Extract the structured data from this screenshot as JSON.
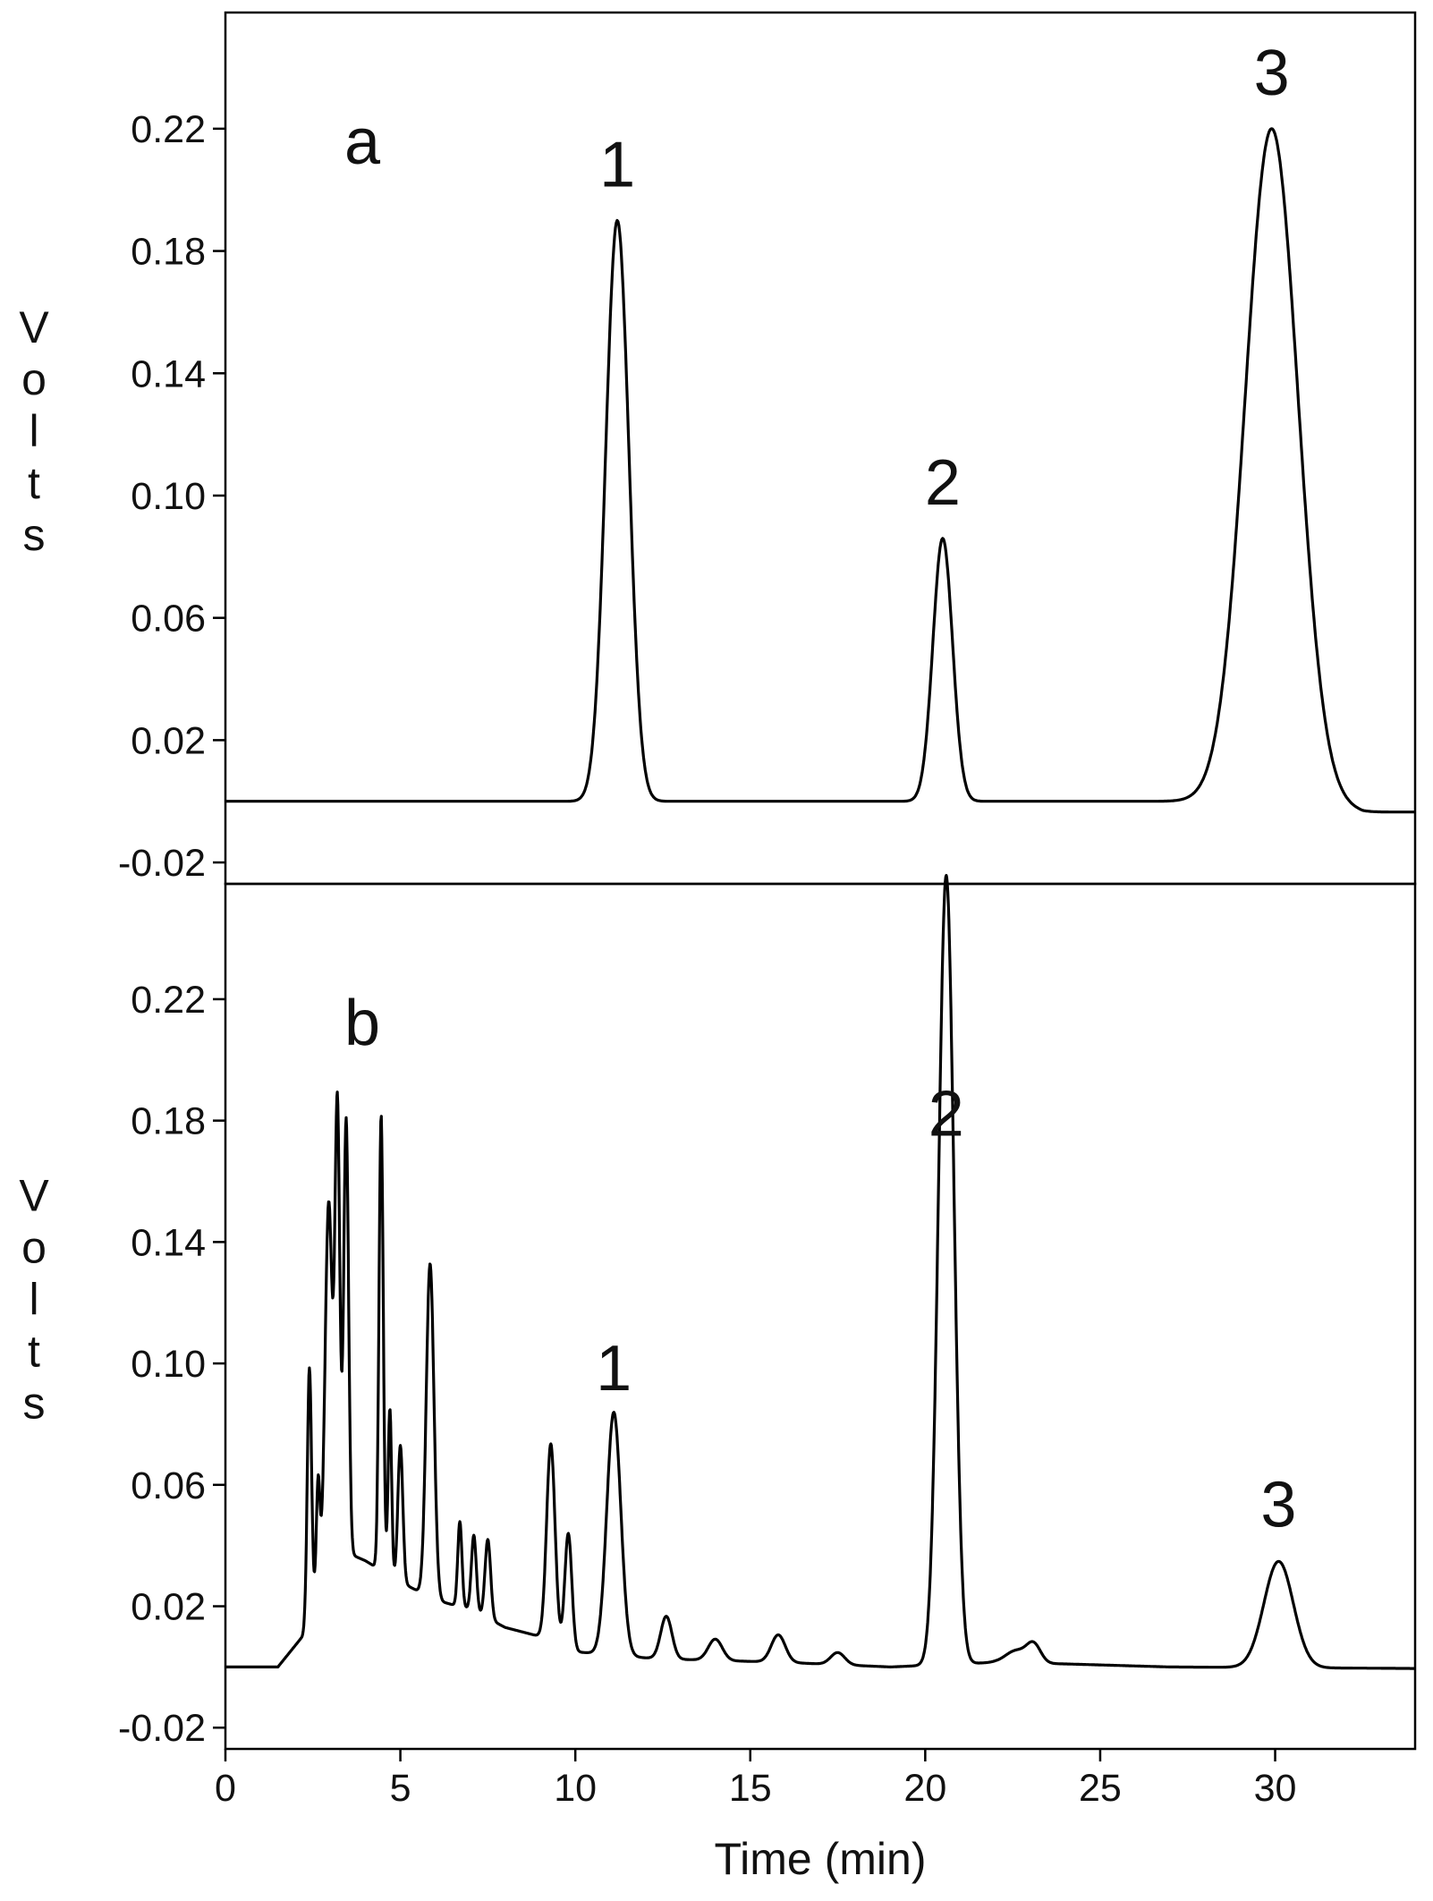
{
  "chart_data": [
    {
      "type": "line",
      "panel_label": "a",
      "ylabel": "Volts",
      "ylim": [
        -0.027,
        0.258
      ],
      "xlim": [
        0,
        34
      ],
      "yticks": [
        "0.22",
        "0.18",
        "0.14",
        "0.10",
        "0.06",
        "0.02",
        "-0.02"
      ],
      "ytick_values": [
        0.22,
        0.18,
        0.14,
        0.1,
        0.06,
        0.02,
        -0.02
      ],
      "baseline": 0.0,
      "drift_end": -0.0035,
      "peaks": [
        {
          "label": "1",
          "x": 11.2,
          "y": 0.19,
          "width": 0.33
        },
        {
          "label": "2",
          "x": 20.5,
          "y": 0.086,
          "width": 0.28
        },
        {
          "label": "3",
          "x": 29.9,
          "y": 0.22,
          "width": 0.75
        }
      ],
      "series": [
        {
          "x": [
            0,
            9.5,
            10.3,
            10.8,
            11.2,
            11.6,
            12.1,
            13.0,
            19.3,
            19.9,
            20.3,
            20.5,
            20.75,
            21.1,
            21.7,
            27.5,
            28.6,
            29.4,
            29.9,
            30.4,
            31.2,
            32.5,
            34.0
          ],
          "y": [
            0.0,
            0.0,
            0.014,
            0.112,
            0.19,
            0.112,
            0.02,
            0.0,
            0.0,
            0.012,
            0.06,
            0.086,
            0.05,
            0.01,
            0.0,
            0.0,
            0.042,
            0.165,
            0.22,
            0.17,
            0.045,
            0.0,
            -0.0035
          ]
        }
      ]
    },
    {
      "type": "line",
      "panel_label": "b",
      "xlabel": "Time (min)",
      "ylabel": "Volts",
      "ylim": [
        -0.027,
        0.258
      ],
      "xlim": [
        0,
        34
      ],
      "yticks": [
        "0.22",
        "0.18",
        "0.14",
        "0.10",
        "0.06",
        "0.02",
        "-0.02"
      ],
      "ytick_values": [
        0.22,
        0.18,
        0.14,
        0.1,
        0.06,
        0.02,
        -0.02
      ],
      "xticks": [
        "0",
        "5",
        "10",
        "15",
        "20",
        "25",
        "30"
      ],
      "xtick_values": [
        0,
        5,
        10,
        15,
        20,
        25,
        30
      ],
      "baseline": 0.0,
      "background": [
        {
          "x": 1.5,
          "y": 0.0
        },
        {
          "x": 2.2,
          "y": 0.01
        },
        {
          "x": 3.0,
          "y": 0.04
        },
        {
          "x": 4.0,
          "y": 0.035
        },
        {
          "x": 5.0,
          "y": 0.028
        },
        {
          "x": 6.0,
          "y": 0.022
        },
        {
          "x": 7.0,
          "y": 0.019
        },
        {
          "x": 8.0,
          "y": 0.013
        },
        {
          "x": 9.0,
          "y": 0.01
        },
        {
          "x": 10.0,
          "y": 0.005
        },
        {
          "x": 11.0,
          "y": 0.004
        },
        {
          "x": 12.0,
          "y": 0.003
        },
        {
          "x": 13.0,
          "y": 0.0025
        },
        {
          "x": 16.0,
          "y": 0.0015
        },
        {
          "x": 19.0,
          "y": 0.0
        },
        {
          "x": 22.0,
          "y": 0.0015
        },
        {
          "x": 24.0,
          "y": 0.001
        },
        {
          "x": 27.0,
          "y": 0.0
        },
        {
          "x": 34.0,
          "y": -0.0005
        }
      ],
      "peaks": [
        {
          "x": 2.4,
          "y": 0.081,
          "width": 0.06
        },
        {
          "x": 2.65,
          "y": 0.035,
          "width": 0.05
        },
        {
          "x": 2.95,
          "y": 0.115,
          "width": 0.1
        },
        {
          "x": 3.2,
          "y": 0.145,
          "width": 0.07
        },
        {
          "x": 3.45,
          "y": 0.143,
          "width": 0.07
        },
        {
          "x": 4.45,
          "y": 0.15,
          "width": 0.06
        },
        {
          "x": 4.7,
          "y": 0.055,
          "width": 0.05
        },
        {
          "x": 5.0,
          "y": 0.045,
          "width": 0.07
        },
        {
          "x": 5.85,
          "y": 0.11,
          "width": 0.11
        },
        {
          "x": 6.7,
          "y": 0.028,
          "width": 0.06
        },
        {
          "x": 7.1,
          "y": 0.025,
          "width": 0.07
        },
        {
          "x": 7.5,
          "y": 0.026,
          "width": 0.08
        },
        {
          "x": 9.3,
          "y": 0.065,
          "width": 0.12
        },
        {
          "x": 9.8,
          "y": 0.038,
          "width": 0.1
        },
        {
          "x": 11.1,
          "y": 0.08,
          "width": 0.2,
          "label": "1"
        },
        {
          "x": 12.6,
          "y": 0.014,
          "width": 0.16
        },
        {
          "x": 14.0,
          "y": 0.007,
          "width": 0.2
        },
        {
          "x": 15.8,
          "y": 0.009,
          "width": 0.2
        },
        {
          "x": 17.5,
          "y": 0.004,
          "width": 0.2
        },
        {
          "x": 20.6,
          "y": 0.26,
          "width": 0.22,
          "label": "2"
        },
        {
          "x": 22.6,
          "y": 0.004,
          "width": 0.3
        },
        {
          "x": 23.1,
          "y": 0.006,
          "width": 0.2
        },
        {
          "x": 30.1,
          "y": 0.035,
          "width": 0.42,
          "label": "3"
        }
      ]
    }
  ]
}
